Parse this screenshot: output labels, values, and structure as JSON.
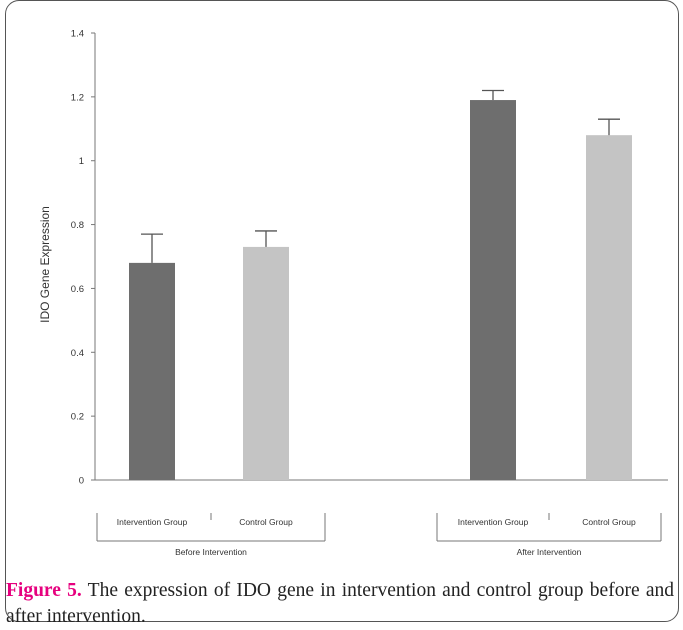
{
  "chart_data": {
    "type": "bar",
    "ylabel": "IDO Gene Expression",
    "ylim": [
      0,
      1.4
    ],
    "yticks": [
      "0",
      "0.2",
      "0.4",
      "0.6",
      "0.8",
      "1",
      "1.2",
      "1.4"
    ],
    "grid": false,
    "groups": [
      {
        "label": "Before Intervention",
        "bars": [
          {
            "label": "Intervention Group",
            "value": 0.68,
            "error": 0.09
          },
          {
            "label": "Control Group",
            "value": 0.73,
            "error": 0.05
          }
        ]
      },
      {
        "label": "After Intervention",
        "bars": [
          {
            "label": "Intervention Group",
            "value": 1.19,
            "error": 0.03
          },
          {
            "label": "Control Group",
            "value": 1.08,
            "error": 0.05
          }
        ]
      }
    ],
    "colors": {
      "Intervention Group": "#6e6e6e",
      "Control Group": "#c4c4c4",
      "axis": "#777777",
      "text": "#333333"
    }
  },
  "caption": {
    "label": "Figure 5.",
    "text": " The expression of IDO gene in intervention and control group before and after intervention."
  }
}
